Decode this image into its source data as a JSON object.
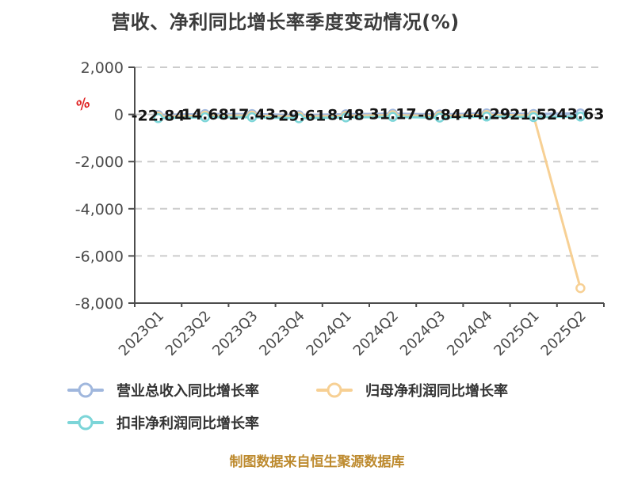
{
  "title": "营收、净利同比增长率季度变动情况(%)",
  "footer": "制图数据来自恒生聚源数据库",
  "y_axis_unit": "%",
  "colors": {
    "revenue_line": "#a0b7dd",
    "net_profit_line": "#f7d094",
    "deducted_profit_line": "#7cd5d8",
    "grid": "#cccccc",
    "axis": "#4d4d4d",
    "axis_text": "#4a4a4a",
    "data_label_text": "#141414",
    "unit_red": "#e02424",
    "footer_text": "#bd8a2e"
  },
  "chart_data": {
    "type": "line",
    "categories": [
      "2023Q1",
      "2023Q2",
      "2023Q3",
      "2023Q4",
      "2024Q1",
      "2024Q2",
      "2024Q3",
      "2024Q4",
      "2025Q1",
      "2025Q2"
    ],
    "series": [
      {
        "name": "营业总收入同比增长率",
        "color": "#a0b7dd",
        "values": [
          -22.84,
          14.68,
          17.43,
          -29.61,
          8.48,
          31.17,
          -0.84,
          44.29,
          21.52,
          43.63
        ],
        "labels_visible": true
      },
      {
        "name": "归母净利润同比增长率",
        "color": "#f7d094",
        "values": [
          -22.84,
          14.68,
          17.43,
          -29.61,
          8.48,
          31.17,
          -0.84,
          44.29,
          21.52,
          -7300
        ],
        "labels_visible": false,
        "last_value_estimated_from_pixels": true
      },
      {
        "name": "扣非净利润同比增长率",
        "color": "#7cd5d8",
        "values": [
          -22.84,
          14.68,
          17.43,
          -29.61,
          8.48,
          31.17,
          -0.84,
          44.29,
          21.52,
          43.63
        ],
        "labels_visible": false
      }
    ],
    "ylim": [
      -8000,
      2000
    ],
    "ytick_values": [
      2000,
      0,
      -2000,
      -4000,
      -6000,
      -8000
    ],
    "ytick_labels": [
      "2,000",
      "0",
      "-2,000",
      "-4,000",
      "-6,000",
      "-8,000"
    ],
    "grid": "horizontal dashed",
    "x_label_rotation": 45,
    "legend_position": "bottom-left"
  },
  "legend": {
    "items": [
      "营业总收入同比增长率",
      "归母净利润同比增长率",
      "扣非净利润同比增长率"
    ]
  }
}
